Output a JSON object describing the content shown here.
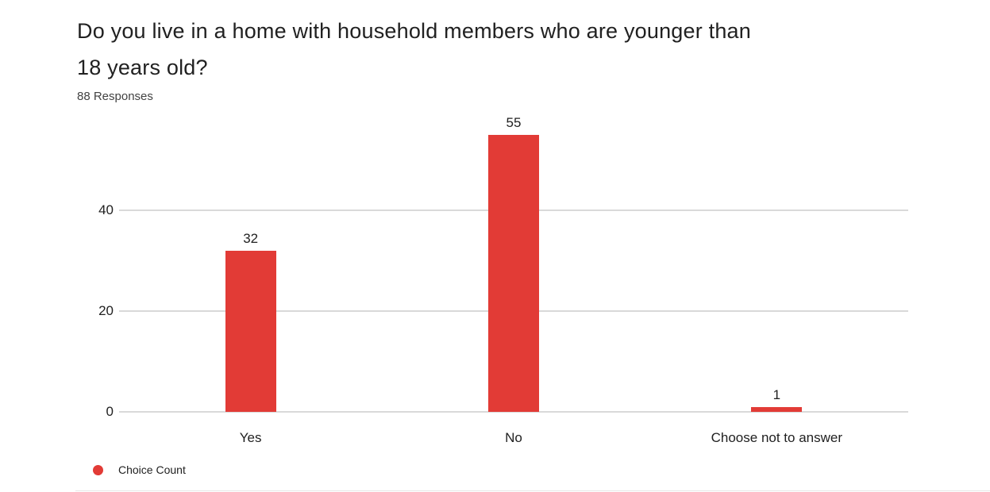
{
  "header": {
    "title_line1": "Do you live in a home with household members who are younger than",
    "title_line2": "18 years old?",
    "subtitle": "88 Responses"
  },
  "legend": {
    "label": "Choice Count"
  },
  "colors": {
    "bar": "#e23b36",
    "gridline": "#d9d9d9",
    "title_text": "#212121",
    "subtitle_text": "#424242",
    "axis_text": "#212121"
  },
  "chart_data": {
    "type": "bar",
    "title": "Do you live in a home with household members who are younger than 18 years old?",
    "subtitle": "88 Responses",
    "categories": [
      "Yes",
      "No",
      "Choose not to answer"
    ],
    "values": [
      32,
      55,
      1
    ],
    "series_name": "Choice Count",
    "yticks": [
      0,
      20,
      40
    ],
    "ylim": [
      0,
      58
    ],
    "grid": true,
    "legend_position": "bottom-left",
    "bar_color": "#e23b36",
    "value_labels_shown": true
  }
}
